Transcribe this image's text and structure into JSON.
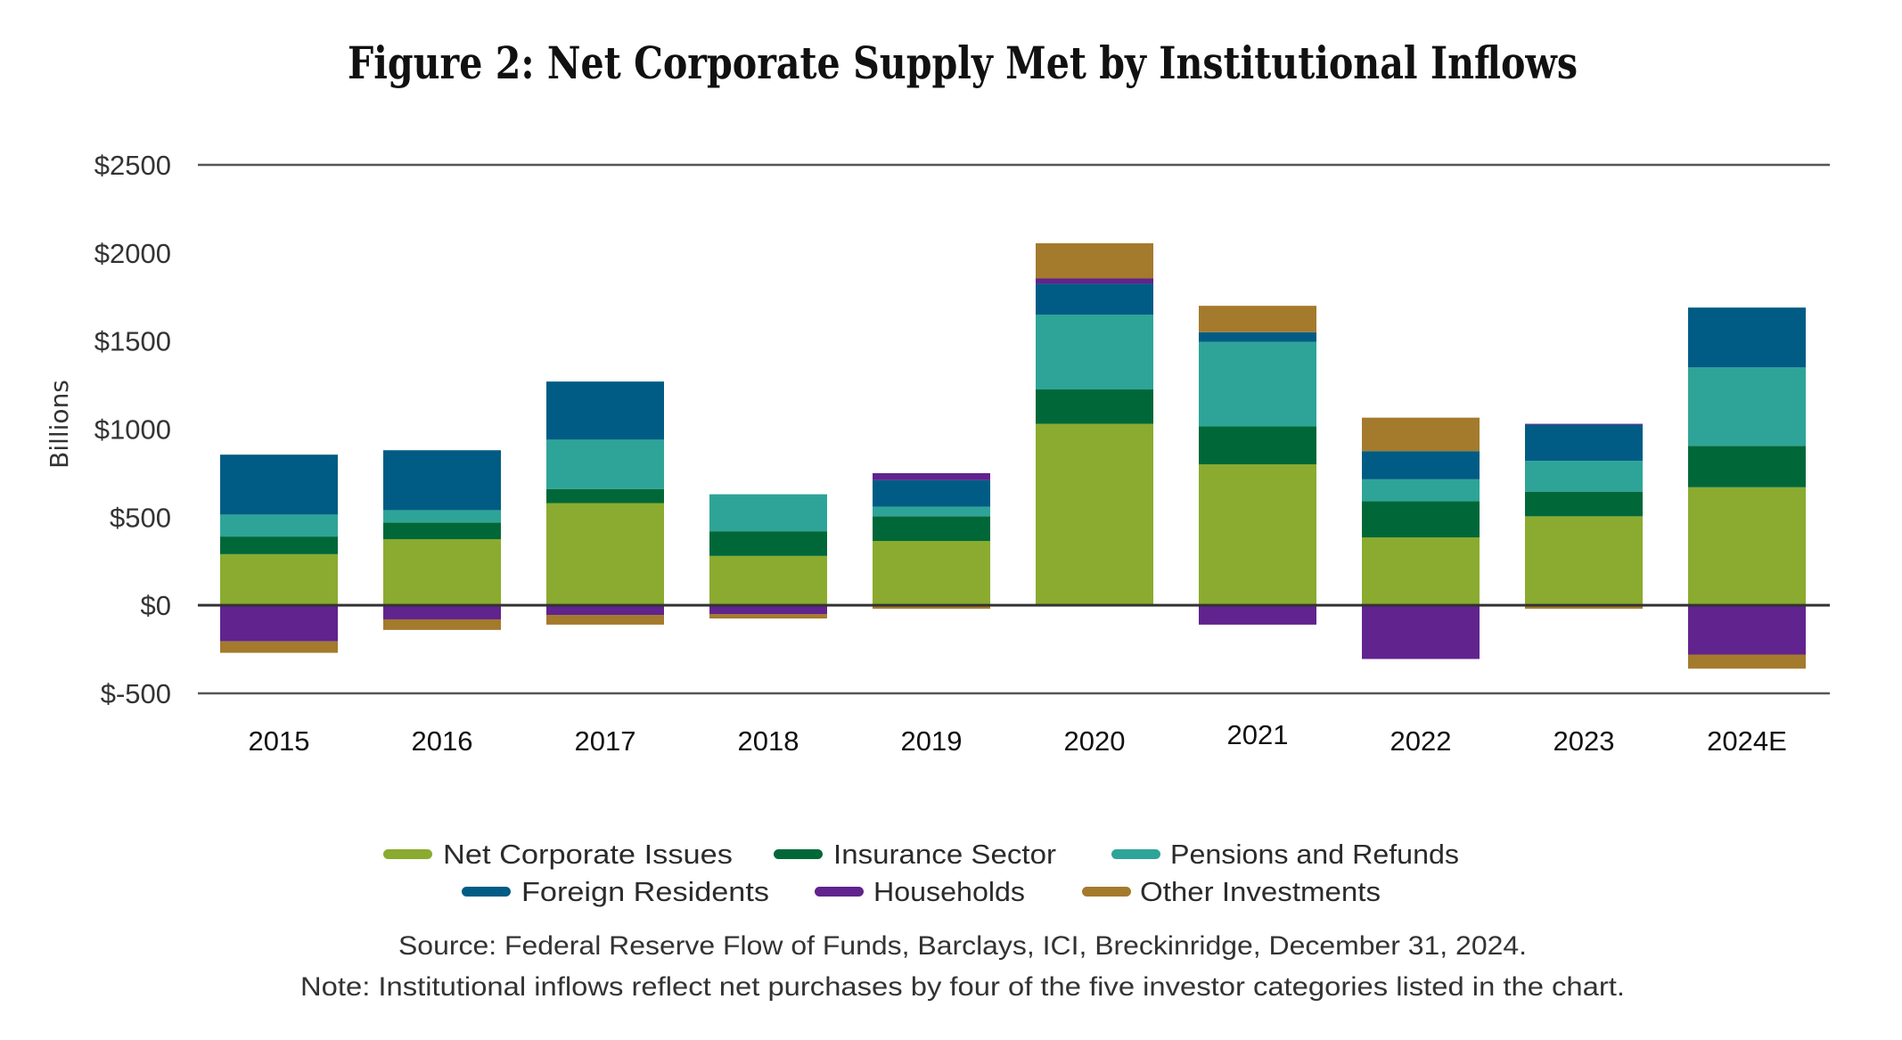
{
  "chart_data": {
    "type": "bar",
    "stacked": true,
    "title": "Figure 2: Net Corporate Supply Met by Institutional Inflows",
    "xlabel": "",
    "ylabel": "Billions",
    "ylim": [
      -500,
      2500
    ],
    "yticks": [
      2500,
      2000,
      1500,
      1000,
      500,
      0,
      -500
    ],
    "ytick_labels": [
      "$2500",
      "$2000",
      "$1500",
      "$1000",
      "$500",
      "$0",
      "$-500"
    ],
    "grid": "major y at $2500 and $-500 plus zero line",
    "legend_position": "bottom-center",
    "categories": [
      "2015",
      "2016",
      "2017",
      "2018",
      "2019",
      "2020",
      "2021",
      "2022",
      "2023",
      "2024E"
    ],
    "series": [
      {
        "name": "Net Corporate Issues",
        "color": "#8AAB2F",
        "values": [
          290,
          375,
          580,
          280,
          365,
          1030,
          800,
          385,
          505,
          670
        ]
      },
      {
        "name": "Insurance Sector",
        "color": "#006838",
        "values": [
          100,
          95,
          80,
          140,
          140,
          195,
          215,
          205,
          140,
          235
        ]
      },
      {
        "name": "Pensions and Refunds",
        "color": "#2EA498",
        "values": [
          125,
          70,
          280,
          210,
          55,
          425,
          480,
          125,
          175,
          445
        ]
      },
      {
        "name": "Foreign Residents",
        "color": "#005C84",
        "values": [
          340,
          340,
          330,
          0,
          150,
          175,
          55,
          160,
          205,
          340
        ]
      },
      {
        "name": "Households",
        "color": "#61238E",
        "values": [
          -205,
          -80,
          -55,
          -50,
          40,
          30,
          -110,
          -305,
          5,
          -280
        ]
      },
      {
        "name": "Other Investments",
        "color": "#A47A2D",
        "values": [
          -65,
          -60,
          -55,
          -25,
          -20,
          200,
          150,
          190,
          -20,
          -80
        ]
      }
    ],
    "notes": {
      "source": "Source: Federal Reserve Flow of Funds, Barclays, ICI, Breckinridge, December 31, 2024.",
      "note": "Note: Institutional inflows reflect net purchases by four of the five investor categories listed in the chart."
    }
  },
  "colors": {
    "axis_line": "#555555",
    "zero_line": "#333333"
  }
}
